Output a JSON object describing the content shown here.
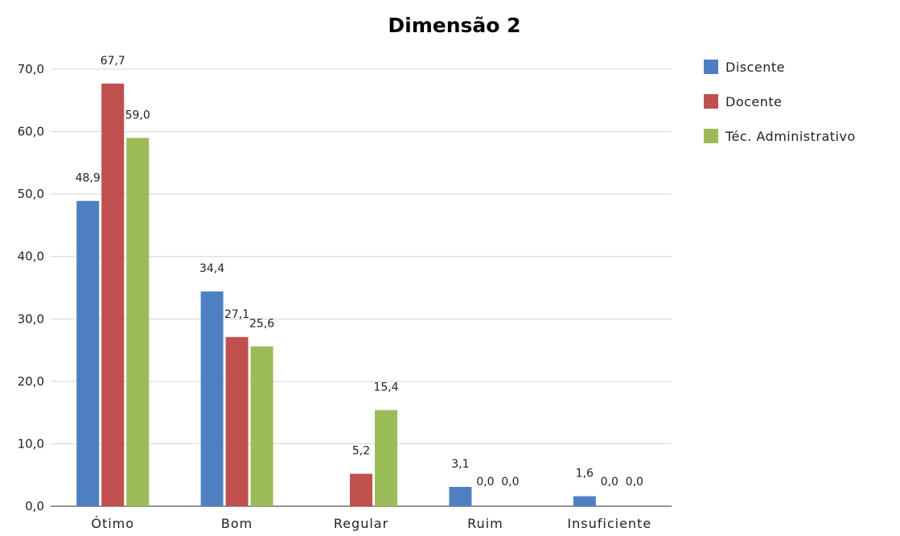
{
  "chart_data": {
    "type": "bar",
    "title": "Dimensão 2",
    "xlabel": "",
    "ylabel": "",
    "ylim": [
      0,
      70
    ],
    "ytick_step": 10,
    "ytick_labels": [
      "0,0",
      "10,0",
      "20,0",
      "30,0",
      "40,0",
      "50,0",
      "60,0",
      "70,0"
    ],
    "grid": true,
    "legend_position": "right",
    "categories": [
      "Ótimo",
      "Bom",
      "Regular",
      "Ruim",
      "Insuficiente"
    ],
    "series": [
      {
        "name": "Discente",
        "color": "#4e7fc1",
        "values": [
          48.9,
          34.4,
          null,
          3.1,
          1.6
        ],
        "labels": [
          "48,9",
          "34,4",
          "",
          "3,1",
          "1,6"
        ]
      },
      {
        "name": "Docente",
        "color": "#c0504d",
        "values": [
          67.7,
          27.1,
          5.2,
          0.0,
          0.0
        ],
        "labels": [
          "67,7",
          "27,1",
          "5,2",
          "0,0",
          "0,0"
        ]
      },
      {
        "name": "Téc. Administrativo",
        "color": "#9bbb59",
        "values": [
          59.0,
          25.6,
          15.4,
          0.0,
          0.0
        ],
        "labels": [
          "59,0",
          "25,6",
          "15,4",
          "0,0",
          "0,0"
        ]
      }
    ]
  }
}
